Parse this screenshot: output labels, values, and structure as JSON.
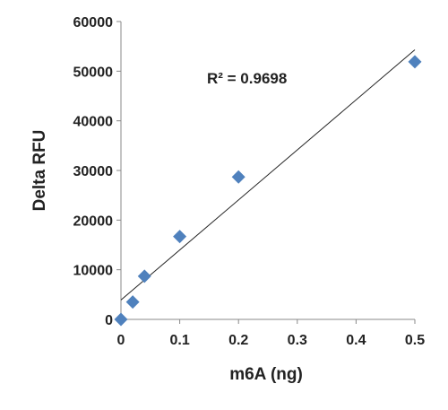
{
  "chart_data": {
    "type": "scatter",
    "xlabel": "m6A (ng)",
    "ylabel": "Delta RFU",
    "xlim": [
      0,
      0.5
    ],
    "ylim": [
      0,
      60000
    ],
    "x_ticks": [
      0,
      0.1,
      0.2,
      0.3,
      0.4,
      0.5
    ],
    "x_tick_labels": [
      "0",
      "0.1",
      "0.2",
      "0.3",
      "0.4",
      "0.5"
    ],
    "y_ticks": [
      0,
      10000,
      20000,
      30000,
      40000,
      50000,
      60000
    ],
    "y_tick_labels": [
      "0",
      "10000",
      "20000",
      "30000",
      "40000",
      "50000",
      "60000"
    ],
    "grid": false,
    "marker": "diamond",
    "marker_color": "#4f81bd",
    "line_color": "#222222",
    "series": [
      {
        "x": [
          0,
          0.02,
          0.04,
          0.1,
          0.2,
          0.5
        ],
        "y": [
          0,
          3500,
          8700,
          16700,
          28700,
          51900
        ]
      }
    ],
    "trendline": {
      "type": "linear",
      "x": [
        0,
        0.5
      ],
      "y": [
        3900,
        54300
      ]
    },
    "annotation": "R² = 0.9698"
  }
}
